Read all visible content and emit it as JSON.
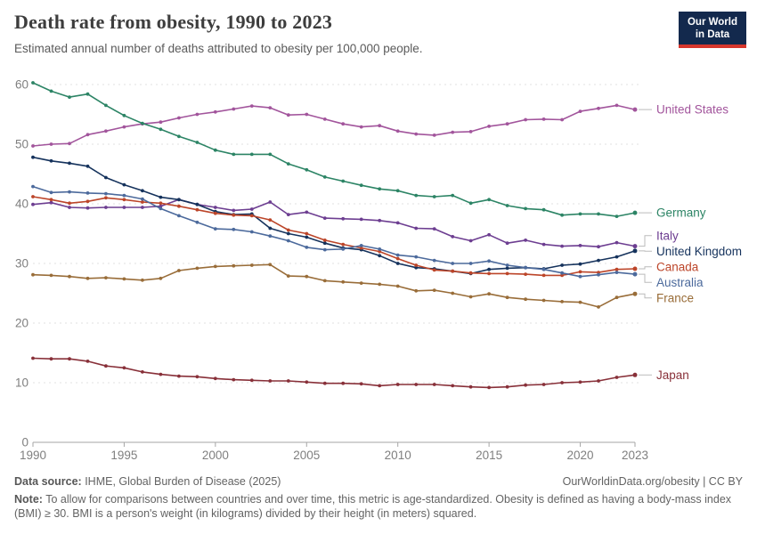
{
  "header": {
    "title": "Death rate from obesity, 1990 to 2023",
    "subtitle": "Estimated annual number of deaths attributed to obesity per 100,000 people.",
    "logo": {
      "line1": "Our World",
      "line2": "in Data",
      "bg_color": "#13294d",
      "accent_color": "#d6362c"
    }
  },
  "chart_data": {
    "type": "line",
    "title": "Death rate from obesity, 1990 to 2023",
    "xlabel": "",
    "ylabel": "Deaths attributed to obesity per 100,000 people",
    "x": [
      1990,
      1991,
      1992,
      1993,
      1994,
      1995,
      1996,
      1997,
      1998,
      1999,
      2000,
      2001,
      2002,
      2003,
      2004,
      2005,
      2006,
      2007,
      2008,
      2009,
      2010,
      2011,
      2012,
      2013,
      2014,
      2015,
      2016,
      2017,
      2018,
      2019,
      2020,
      2021,
      2022,
      2023
    ],
    "xticks": [
      1990,
      1995,
      2000,
      2005,
      2010,
      2015,
      2020,
      2023
    ],
    "yticks": [
      0,
      10,
      20,
      30,
      40,
      50,
      60
    ],
    "xlim": [
      1990,
      2023
    ],
    "ylim": [
      0,
      60
    ],
    "grid": "horizontal-dashed",
    "legend_position": "right-end-labels",
    "series": [
      {
        "name": "United States",
        "color": "#a2559c",
        "values": [
          49.7,
          50.0,
          50.1,
          51.6,
          52.2,
          52.9,
          53.4,
          53.7,
          54.4,
          55.0,
          55.4,
          55.9,
          56.4,
          56.1,
          54.9,
          55.0,
          54.2,
          53.4,
          52.9,
          53.1,
          52.2,
          51.7,
          51.5,
          52.0,
          52.1,
          53.0,
          53.4,
          54.1,
          54.2,
          54.1,
          55.5,
          56.0,
          56.5,
          55.8
        ]
      },
      {
        "name": "Germany",
        "color": "#2c8465",
        "values": [
          60.3,
          58.9,
          57.9,
          58.4,
          56.5,
          54.8,
          53.5,
          52.5,
          51.3,
          50.3,
          49.0,
          48.3,
          48.3,
          48.3,
          46.7,
          45.7,
          44.5,
          43.8,
          43.1,
          42.5,
          42.2,
          41.4,
          41.2,
          41.4,
          40.1,
          40.7,
          39.7,
          39.2,
          39.0,
          38.1,
          38.3,
          38.3,
          37.9,
          38.5
        ]
      },
      {
        "name": "Italy",
        "color": "#6d3e91",
        "values": [
          39.9,
          40.2,
          39.4,
          39.3,
          39.4,
          39.4,
          39.4,
          39.6,
          40.7,
          39.9,
          39.4,
          38.9,
          39.1,
          40.3,
          38.2,
          38.6,
          37.6,
          37.5,
          37.4,
          37.2,
          36.8,
          35.9,
          35.8,
          34.5,
          33.8,
          34.8,
          33.4,
          33.9,
          33.2,
          32.9,
          33.0,
          32.8,
          33.5,
          32.9
        ]
      },
      {
        "name": "United Kingdom",
        "color": "#15325c",
        "values": [
          47.8,
          47.2,
          46.8,
          46.3,
          44.4,
          43.2,
          42.2,
          41.1,
          40.7,
          39.9,
          38.7,
          38.2,
          38.3,
          35.9,
          35.0,
          34.4,
          33.4,
          32.6,
          32.3,
          31.3,
          30.0,
          29.3,
          29.1,
          28.7,
          28.3,
          29.0,
          29.2,
          29.3,
          29.1,
          29.7,
          29.9,
          30.5,
          31.1,
          32.1
        ]
      },
      {
        "name": "Canada",
        "color": "#bc4529",
        "values": [
          41.2,
          40.7,
          40.1,
          40.4,
          41.0,
          40.7,
          40.3,
          40.1,
          39.6,
          39.0,
          38.4,
          38.1,
          38.0,
          37.3,
          35.6,
          35.0,
          33.9,
          33.2,
          32.6,
          32.0,
          30.8,
          29.7,
          28.9,
          28.7,
          28.4,
          28.3,
          28.3,
          28.2,
          28.0,
          28.0,
          28.6,
          28.5,
          29.0,
          29.1
        ]
      },
      {
        "name": "Australia",
        "color": "#4c6a9c",
        "values": [
          42.9,
          41.9,
          42.0,
          41.8,
          41.7,
          41.4,
          40.8,
          39.2,
          38.0,
          36.9,
          35.8,
          35.7,
          35.3,
          34.6,
          33.8,
          32.7,
          32.3,
          32.4,
          33.0,
          32.4,
          31.4,
          31.1,
          30.5,
          30.0,
          30.0,
          30.4,
          29.7,
          29.3,
          29.0,
          28.4,
          27.8,
          28.1,
          28.5,
          28.2
        ]
      },
      {
        "name": "France",
        "color": "#996d39",
        "values": [
          28.1,
          28.0,
          27.8,
          27.5,
          27.6,
          27.4,
          27.2,
          27.5,
          28.8,
          29.2,
          29.5,
          29.6,
          29.7,
          29.8,
          27.9,
          27.8,
          27.1,
          26.9,
          26.7,
          26.5,
          26.2,
          25.4,
          25.5,
          25.0,
          24.4,
          24.9,
          24.3,
          24.0,
          23.8,
          23.6,
          23.5,
          22.7,
          24.3,
          24.9
        ]
      },
      {
        "name": "Japan",
        "color": "#883039",
        "values": [
          14.1,
          14.0,
          14.0,
          13.6,
          12.8,
          12.5,
          11.8,
          11.4,
          11.1,
          11.0,
          10.7,
          10.5,
          10.4,
          10.3,
          10.3,
          10.1,
          9.9,
          9.9,
          9.8,
          9.5,
          9.7,
          9.7,
          9.7,
          9.5,
          9.3,
          9.2,
          9.3,
          9.6,
          9.7,
          10.0,
          10.1,
          10.3,
          10.9,
          11.3
        ]
      }
    ]
  },
  "footer": {
    "datasource_label": "Data source:",
    "datasource_text": " IHME, Global Burden of Disease (2025)",
    "link_text": "OurWorldinData.org/obesity | CC BY",
    "note_label": "Note:",
    "note_text": " To allow for comparisons between countries and over time, this metric is age-standardized. Obesity is defined as having a body-mass index (BMI) ≥ 30. BMI is a person's weight (in kilograms) divided by their height (in meters) squared."
  }
}
